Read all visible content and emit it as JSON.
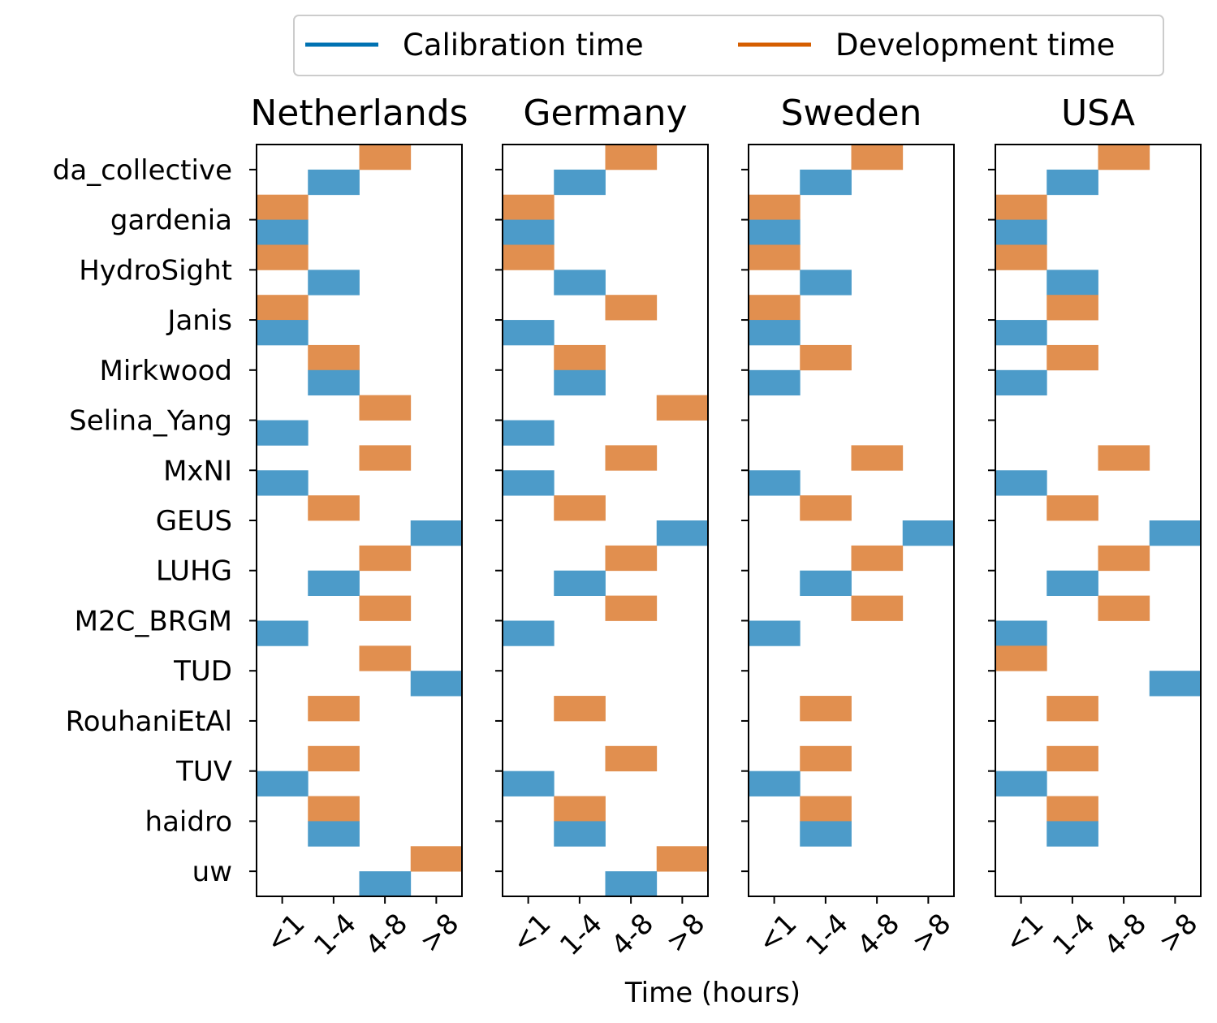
{
  "chart_data": {
    "type": "heatmap",
    "xlabel": "Time (hours)",
    "categories": [
      "<1",
      "1-4",
      "4-8",
      ">8"
    ],
    "teams": [
      "da_collective",
      "gardenia",
      "HydroSight",
      "Janis",
      "Mirkwood",
      "Selina_Yang",
      "MxNI",
      "GEUS",
      "LUHG",
      "M2C_BRGM",
      "TUD",
      "RouhaniEtAl",
      "TUV",
      "haidro",
      "uw"
    ],
    "legend": {
      "placement": "top-center",
      "entries": [
        {
          "name": "Calibration time",
          "color": "#0072b2"
        },
        {
          "name": "Development time",
          "color": "#d55e00"
        }
      ]
    },
    "colors": {
      "calibration_cell": "#4c9bc9",
      "development_cell": "#e18f4f"
    },
    "panels": [
      {
        "title": "Netherlands",
        "development": [
          2,
          0,
          0,
          0,
          1,
          2,
          2,
          1,
          2,
          2,
          2,
          1,
          1,
          1,
          3
        ],
        "calibration": [
          1,
          0,
          1,
          0,
          1,
          0,
          0,
          3,
          1,
          0,
          3,
          null,
          0,
          1,
          2
        ]
      },
      {
        "title": "Germany",
        "development": [
          2,
          0,
          0,
          2,
          1,
          3,
          2,
          1,
          2,
          2,
          null,
          1,
          2,
          1,
          3
        ],
        "calibration": [
          1,
          0,
          1,
          0,
          1,
          0,
          0,
          3,
          1,
          0,
          null,
          null,
          0,
          1,
          2
        ]
      },
      {
        "title": "Sweden",
        "development": [
          2,
          0,
          0,
          0,
          1,
          null,
          2,
          1,
          2,
          2,
          null,
          1,
          1,
          1,
          null
        ],
        "calibration": [
          1,
          0,
          1,
          0,
          0,
          null,
          0,
          3,
          1,
          0,
          null,
          null,
          0,
          1,
          null
        ]
      },
      {
        "title": "USA",
        "development": [
          2,
          0,
          0,
          1,
          1,
          null,
          2,
          1,
          2,
          2,
          0,
          1,
          1,
          1,
          null
        ],
        "calibration": [
          1,
          0,
          1,
          0,
          0,
          null,
          0,
          3,
          1,
          0,
          3,
          null,
          0,
          1,
          null
        ]
      }
    ]
  }
}
